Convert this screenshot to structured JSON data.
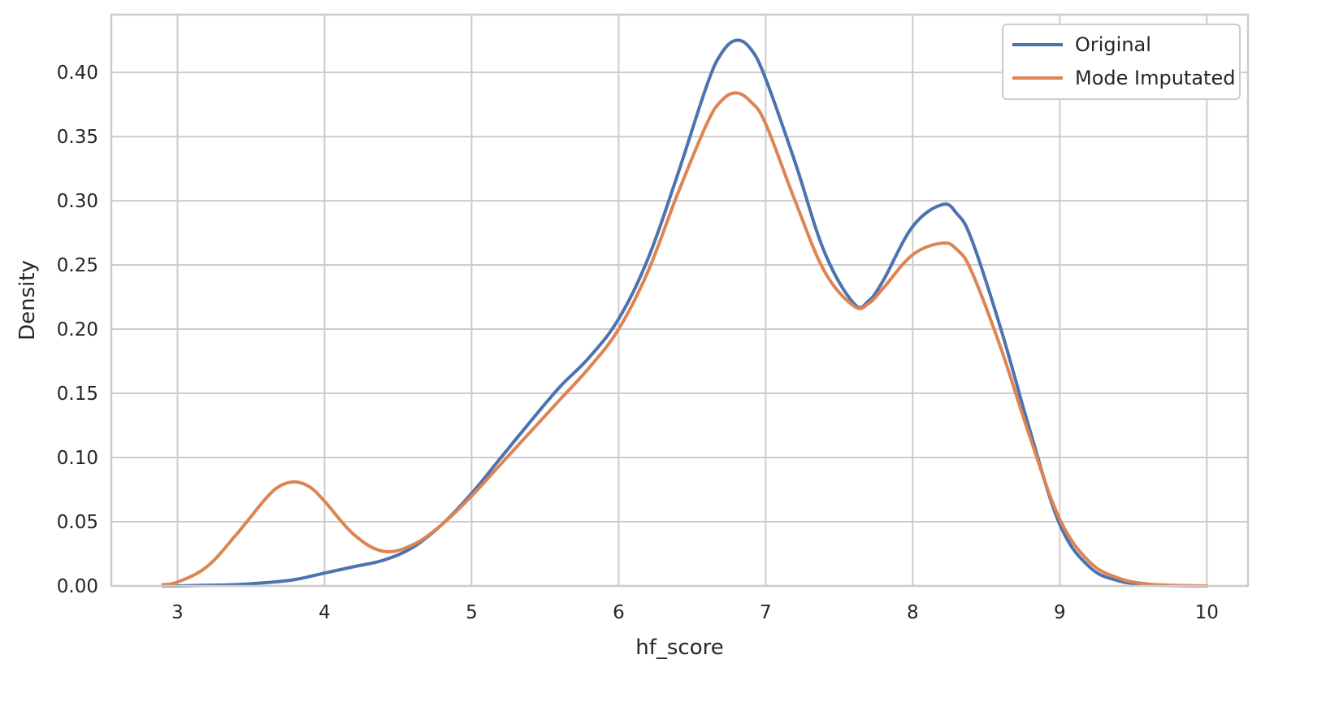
{
  "chart_data": {
    "type": "line",
    "title": "",
    "xlabel": "hf_score",
    "ylabel": "Density",
    "xlim": [
      2.55,
      10.28
    ],
    "ylim": [
      0.0,
      0.445
    ],
    "xticks": [
      3,
      4,
      5,
      6,
      7,
      8,
      9,
      10
    ],
    "xtick_labels": [
      "3",
      "4",
      "5",
      "6",
      "7",
      "8",
      "9",
      "10"
    ],
    "yticks": [
      0.0,
      0.05,
      0.1,
      0.15,
      0.2,
      0.25,
      0.3,
      0.35,
      0.4
    ],
    "ytick_labels": [
      "0.00",
      "0.05",
      "0.10",
      "0.15",
      "0.20",
      "0.25",
      "0.30",
      "0.35",
      "0.40"
    ],
    "grid": true,
    "legend_position": "top-right",
    "series": [
      {
        "name": "Original",
        "color": "#4c72b0",
        "x": [
          2.9,
          3.0,
          3.2,
          3.4,
          3.6,
          3.8,
          4.0,
          4.2,
          4.4,
          4.6,
          4.8,
          5.0,
          5.2,
          5.4,
          5.6,
          5.8,
          6.0,
          6.2,
          6.4,
          6.6,
          6.7,
          6.8,
          6.9,
          7.0,
          7.2,
          7.4,
          7.6,
          7.7,
          7.8,
          8.0,
          8.2,
          8.3,
          8.4,
          8.6,
          8.8,
          9.0,
          9.2,
          9.4,
          9.6,
          9.8,
          10.0
        ],
        "y": [
          0.0,
          0.0,
          0.0005,
          0.001,
          0.0025,
          0.005,
          0.01,
          0.015,
          0.02,
          0.03,
          0.048,
          0.072,
          0.1,
          0.128,
          0.155,
          0.178,
          0.208,
          0.255,
          0.32,
          0.39,
          0.415,
          0.425,
          0.418,
          0.395,
          0.33,
          0.26,
          0.22,
          0.222,
          0.238,
          0.28,
          0.297,
          0.29,
          0.27,
          0.2,
          0.12,
          0.048,
          0.015,
          0.004,
          0.001,
          0.0002,
          0.0
        ]
      },
      {
        "name": "Mode Imputated",
        "color": "#dd8452",
        "x": [
          2.9,
          3.0,
          3.2,
          3.4,
          3.6,
          3.7,
          3.8,
          3.9,
          4.0,
          4.2,
          4.4,
          4.6,
          4.8,
          5.0,
          5.2,
          5.4,
          5.6,
          5.8,
          6.0,
          6.2,
          6.4,
          6.6,
          6.7,
          6.8,
          6.9,
          7.0,
          7.2,
          7.4,
          7.6,
          7.7,
          7.8,
          8.0,
          8.2,
          8.3,
          8.4,
          8.6,
          8.8,
          9.0,
          9.2,
          9.4,
          9.6,
          9.8,
          10.0
        ],
        "y": [
          0.001,
          0.003,
          0.015,
          0.04,
          0.068,
          0.078,
          0.081,
          0.077,
          0.066,
          0.04,
          0.027,
          0.032,
          0.048,
          0.07,
          0.095,
          0.12,
          0.145,
          0.17,
          0.2,
          0.245,
          0.305,
          0.36,
          0.378,
          0.384,
          0.377,
          0.36,
          0.3,
          0.245,
          0.218,
          0.22,
          0.232,
          0.258,
          0.267,
          0.262,
          0.245,
          0.185,
          0.115,
          0.052,
          0.019,
          0.006,
          0.0015,
          0.0004,
          0.0
        ]
      }
    ]
  }
}
